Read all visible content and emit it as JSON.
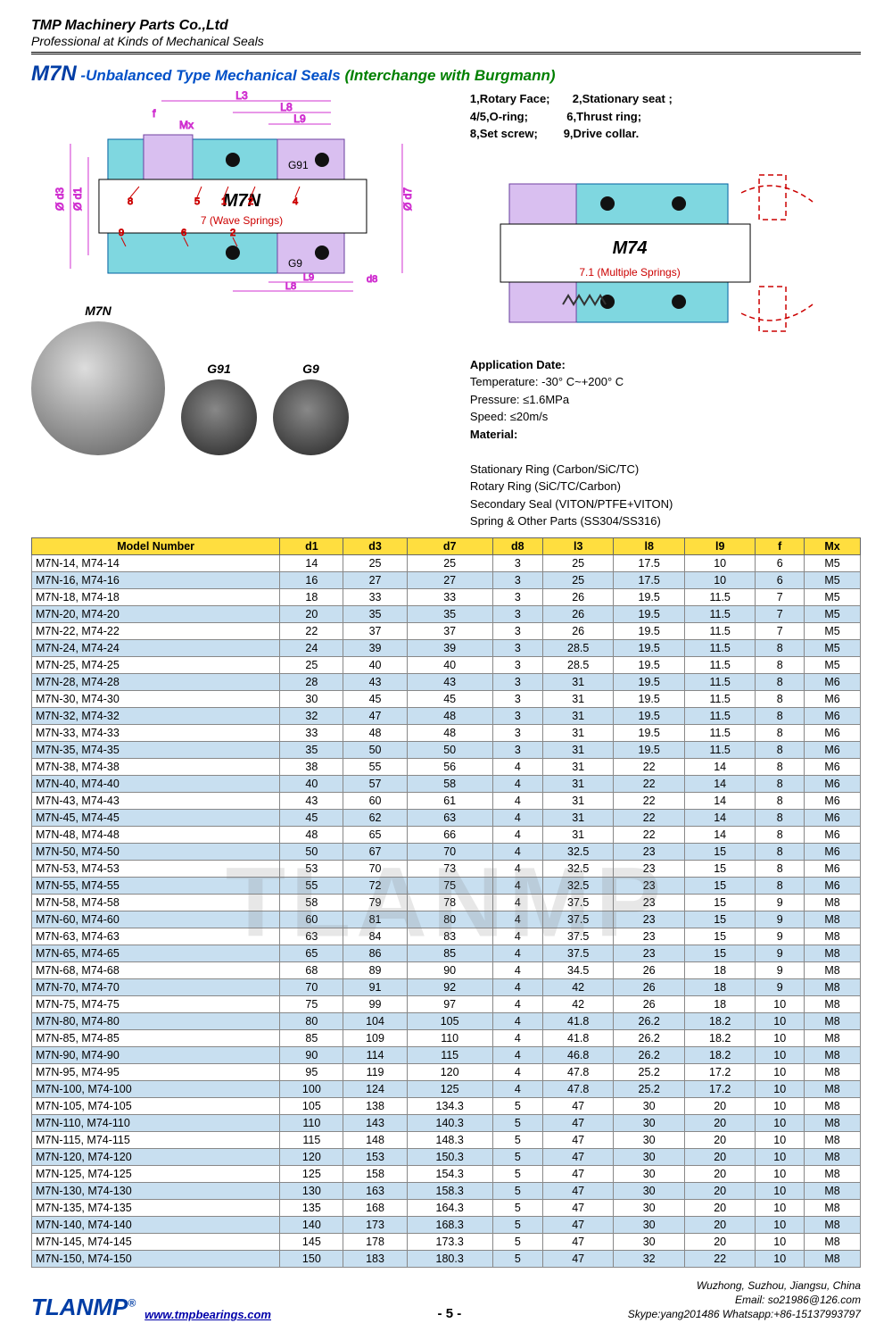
{
  "header": {
    "company": "TMP Machinery Parts Co.,Ltd",
    "tagline": "Professional at Kinds of Mechanical Seals"
  },
  "title": {
    "model": "M7N",
    "sub": "-Unbalanced Type Mechanical Seals",
    "interchange": "(Interchange with Burgmann)"
  },
  "parts": {
    "p1": "1,Rotary Face;",
    "p2": "2,Stationary seat ;",
    "p45": "4/5,O-ring;",
    "p6": "6,Thrust ring;",
    "p8": "8,Set screw;",
    "p9": "9,Drive collar."
  },
  "diagram": {
    "left_model": "M7N",
    "left_note": "7 (Wave Springs)",
    "left_label_g91": "G91",
    "left_label_g9": "G9",
    "right_model": "M74",
    "right_note": "7.1 (Multiple Springs)"
  },
  "photos": {
    "p1": "M7N",
    "p2": "G91",
    "p3": "G9"
  },
  "application": {
    "hd": "Application Date:",
    "temp": "Temperature: -30° C~+200° C",
    "press": "Pressure: ≤1.6MPa",
    "speed": "Speed: ≤20m/s",
    "mat": "Material:",
    "m1": "Stationary Ring (Carbon/SiC/TC)",
    "m2": "Rotary Ring (SiC/TC/Carbon)",
    "m3": "Secondary Seal (VITON/PTFE+VITON)",
    "m4": "Spring & Other Parts (SS304/SS316)"
  },
  "table": {
    "headers": [
      "Model Number",
      "d1",
      "d3",
      "d7",
      "d8",
      "l3",
      "l8",
      "l9",
      "f",
      "Mx"
    ],
    "rows": [
      [
        "M7N-14, M74-14",
        "14",
        "25",
        "25",
        "3",
        "25",
        "17.5",
        "10",
        "6",
        "M5"
      ],
      [
        "M7N-16, M74-16",
        "16",
        "27",
        "27",
        "3",
        "25",
        "17.5",
        "10",
        "6",
        "M5"
      ],
      [
        "M7N-18, M74-18",
        "18",
        "33",
        "33",
        "3",
        "26",
        "19.5",
        "11.5",
        "7",
        "M5"
      ],
      [
        "M7N-20, M74-20",
        "20",
        "35",
        "35",
        "3",
        "26",
        "19.5",
        "11.5",
        "7",
        "M5"
      ],
      [
        "M7N-22, M74-22",
        "22",
        "37",
        "37",
        "3",
        "26",
        "19.5",
        "11.5",
        "7",
        "M5"
      ],
      [
        "M7N-24, M74-24",
        "24",
        "39",
        "39",
        "3",
        "28.5",
        "19.5",
        "11.5",
        "8",
        "M5"
      ],
      [
        "M7N-25, M74-25",
        "25",
        "40",
        "40",
        "3",
        "28.5",
        "19.5",
        "11.5",
        "8",
        "M5"
      ],
      [
        "M7N-28, M74-28",
        "28",
        "43",
        "43",
        "3",
        "31",
        "19.5",
        "11.5",
        "8",
        "M6"
      ],
      [
        "M7N-30, M74-30",
        "30",
        "45",
        "45",
        "3",
        "31",
        "19.5",
        "11.5",
        "8",
        "M6"
      ],
      [
        "M7N-32, M74-32",
        "32",
        "47",
        "48",
        "3",
        "31",
        "19.5",
        "11.5",
        "8",
        "M6"
      ],
      [
        "M7N-33, M74-33",
        "33",
        "48",
        "48",
        "3",
        "31",
        "19.5",
        "11.5",
        "8",
        "M6"
      ],
      [
        "M7N-35, M74-35",
        "35",
        "50",
        "50",
        "3",
        "31",
        "19.5",
        "11.5",
        "8",
        "M6"
      ],
      [
        "M7N-38, M74-38",
        "38",
        "55",
        "56",
        "4",
        "31",
        "22",
        "14",
        "8",
        "M6"
      ],
      [
        "M7N-40, M74-40",
        "40",
        "57",
        "58",
        "4",
        "31",
        "22",
        "14",
        "8",
        "M6"
      ],
      [
        "M7N-43, M74-43",
        "43",
        "60",
        "61",
        "4",
        "31",
        "22",
        "14",
        "8",
        "M6"
      ],
      [
        "M7N-45, M74-45",
        "45",
        "62",
        "63",
        "4",
        "31",
        "22",
        "14",
        "8",
        "M6"
      ],
      [
        "M7N-48, M74-48",
        "48",
        "65",
        "66",
        "4",
        "31",
        "22",
        "14",
        "8",
        "M6"
      ],
      [
        "M7N-50, M74-50",
        "50",
        "67",
        "70",
        "4",
        "32.5",
        "23",
        "15",
        "8",
        "M6"
      ],
      [
        "M7N-53, M74-53",
        "53",
        "70",
        "73",
        "4",
        "32.5",
        "23",
        "15",
        "8",
        "M6"
      ],
      [
        "M7N-55, M74-55",
        "55",
        "72",
        "75",
        "4",
        "32.5",
        "23",
        "15",
        "8",
        "M6"
      ],
      [
        "M7N-58, M74-58",
        "58",
        "79",
        "78",
        "4",
        "37.5",
        "23",
        "15",
        "9",
        "M8"
      ],
      [
        "M7N-60, M74-60",
        "60",
        "81",
        "80",
        "4",
        "37.5",
        "23",
        "15",
        "9",
        "M8"
      ],
      [
        "M7N-63, M74-63",
        "63",
        "84",
        "83",
        "4",
        "37.5",
        "23",
        "15",
        "9",
        "M8"
      ],
      [
        "M7N-65, M74-65",
        "65",
        "86",
        "85",
        "4",
        "37.5",
        "23",
        "15",
        "9",
        "M8"
      ],
      [
        "M7N-68, M74-68",
        "68",
        "89",
        "90",
        "4",
        "34.5",
        "26",
        "18",
        "9",
        "M8"
      ],
      [
        "M7N-70, M74-70",
        "70",
        "91",
        "92",
        "4",
        "42",
        "26",
        "18",
        "9",
        "M8"
      ],
      [
        "M7N-75, M74-75",
        "75",
        "99",
        "97",
        "4",
        "42",
        "26",
        "18",
        "10",
        "M8"
      ],
      [
        "M7N-80, M74-80",
        "80",
        "104",
        "105",
        "4",
        "41.8",
        "26.2",
        "18.2",
        "10",
        "M8"
      ],
      [
        "M7N-85, M74-85",
        "85",
        "109",
        "110",
        "4",
        "41.8",
        "26.2",
        "18.2",
        "10",
        "M8"
      ],
      [
        "M7N-90, M74-90",
        "90",
        "114",
        "115",
        "4",
        "46.8",
        "26.2",
        "18.2",
        "10",
        "M8"
      ],
      [
        "M7N-95, M74-95",
        "95",
        "119",
        "120",
        "4",
        "47.8",
        "25.2",
        "17.2",
        "10",
        "M8"
      ],
      [
        "M7N-100, M74-100",
        "100",
        "124",
        "125",
        "4",
        "47.8",
        "25.2",
        "17.2",
        "10",
        "M8"
      ],
      [
        "M7N-105, M74-105",
        "105",
        "138",
        "134.3",
        "5",
        "47",
        "30",
        "20",
        "10",
        "M8"
      ],
      [
        "M7N-110, M74-110",
        "110",
        "143",
        "140.3",
        "5",
        "47",
        "30",
        "20",
        "10",
        "M8"
      ],
      [
        "M7N-115, M74-115",
        "115",
        "148",
        "148.3",
        "5",
        "47",
        "30",
        "20",
        "10",
        "M8"
      ],
      [
        "M7N-120, M74-120",
        "120",
        "153",
        "150.3",
        "5",
        "47",
        "30",
        "20",
        "10",
        "M8"
      ],
      [
        "M7N-125, M74-125",
        "125",
        "158",
        "154.3",
        "5",
        "47",
        "30",
        "20",
        "10",
        "M8"
      ],
      [
        "M7N-130, M74-130",
        "130",
        "163",
        "158.3",
        "5",
        "47",
        "30",
        "20",
        "10",
        "M8"
      ],
      [
        "M7N-135, M74-135",
        "135",
        "168",
        "164.3",
        "5",
        "47",
        "30",
        "20",
        "10",
        "M8"
      ],
      [
        "M7N-140, M74-140",
        "140",
        "173",
        "168.3",
        "5",
        "47",
        "30",
        "20",
        "10",
        "M8"
      ],
      [
        "M7N-145, M74-145",
        "145",
        "178",
        "173.3",
        "5",
        "47",
        "30",
        "20",
        "10",
        "M8"
      ],
      [
        "M7N-150, M74-150",
        "150",
        "183",
        "180.3",
        "5",
        "47",
        "32",
        "22",
        "10",
        "M8"
      ]
    ],
    "header_bg": "#ffde3f",
    "row_even_bg": "#c8dff0",
    "row_odd_bg": "#ffffff"
  },
  "footer": {
    "logo": "TLANMP",
    "reg": "®",
    "url": "www.tmpbearings.com",
    "page": "- 5 -",
    "addr": "Wuzhong, Suzhou, Jiangsu, China",
    "email": "Email: so21986@126.com",
    "skype": "Skype:yang201486  Whatsapp:+86-15137993797"
  }
}
